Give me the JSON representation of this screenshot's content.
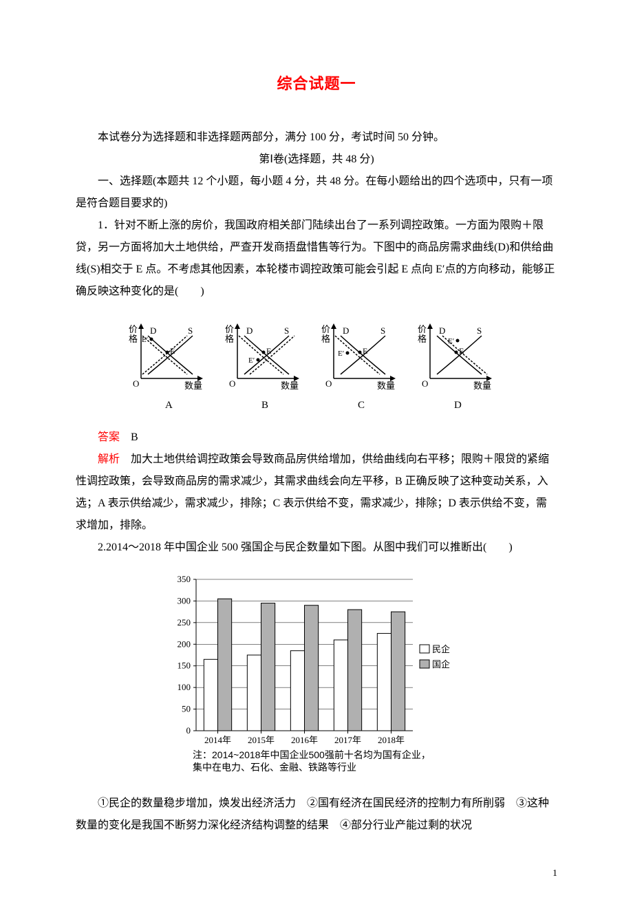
{
  "title": "综合试题一",
  "intro": "本试卷分为选择题和非选择题两部分，满分 100 分，考试时间 50 分钟。",
  "section_header": "第Ⅰ卷(选择题，共 48 分)",
  "instructions": "一、选择题(本题共 12 个小题，每小题 4 分，共 48 分。在每小题给出的四个选项中，只有一项是符合题目要求的)",
  "q1": {
    "text": "1．针对不断上涨的房价，我国政府相关部门陆续出台了一系列调控政策。一方面为限购＋限贷，另一方面将加大土地供给，严查开发商捂盘惜售等行为。下图中的商品房需求曲线(D)和供给曲线(S)相交于 E 点。不考虑其他因素，本轮楼市调控政策可能会引起 E 点向 E′点的方向移动，能够正确反映这种变化的是(　　)",
    "answer_label": "答案",
    "answer": "　B",
    "analysis_label": "解析",
    "analysis": "　加大土地供给调控政策会导致商品房供给增加，供给曲线向右平移；限购＋限贷的紧缩性调控政策，会导致商品房的需求减少，其需求曲线会向左平移，B 正确反映了这种变动关系，入选；A 表示供给减少，需求减少，排除；C 表示供给不变，需求减少，排除；D 表示供给不变，需求增加，排除。"
  },
  "q2": {
    "text": "2.2014～2018 年中国企业 500 强国企与民企数量如下图。从图中我们可以推断出(　　)",
    "options": "①民企的数量稳步增加，焕发出经济活力　②国有经济在国民经济的控制力有所削弱　③这种数量的变化是我国不断努力深化经济结构调整的结果　④部分行业产能过剩的状况"
  },
  "sd_charts": {
    "axis_labels": {
      "y": "价格",
      "x": "数量"
    },
    "curve_labels": {
      "demand": "D",
      "supply": "S"
    },
    "point_labels": {
      "e": "E",
      "eprime": "E′"
    },
    "options": [
      "A",
      "B",
      "C",
      "D"
    ],
    "line_color": "#000000",
    "dashed_color": "#000000",
    "stroke_width": 1.5,
    "variants": [
      {
        "id": "A",
        "d_shift": -8,
        "s_shift": -8,
        "eprime_pos": [
          40,
          38
        ]
      },
      {
        "id": "B",
        "d_shift": -8,
        "s_shift": 8,
        "eprime_pos": [
          55,
          68
        ]
      },
      {
        "id": "C",
        "d_shift": -8,
        "s_shift": 0,
        "eprime_pos": [
          45,
          58
        ]
      },
      {
        "id": "D",
        "d_shift": 8,
        "s_shift": 0,
        "eprime_pos": [
          65,
          40
        ]
      }
    ]
  },
  "bar_chart": {
    "type": "bar",
    "categories": [
      "2014年",
      "2015年",
      "2016年",
      "2017年",
      "2018年"
    ],
    "series": [
      {
        "name": "民企",
        "values": [
          165,
          175,
          185,
          210,
          225
        ],
        "fill": "#ffffff",
        "stroke": "#000000"
      },
      {
        "name": "国企",
        "values": [
          305,
          295,
          290,
          280,
          275
        ],
        "fill": "#b0b0b0",
        "stroke": "#000000"
      }
    ],
    "ylim": [
      0,
      350
    ],
    "ytick_step": 50,
    "yticks": [
      0,
      50,
      100,
      150,
      200,
      250,
      300,
      350
    ],
    "bar_width": 0.32,
    "background_color": "#ffffff",
    "axis_color": "#000000",
    "grid_color": "#000000",
    "tick_fontsize": 13,
    "legend": {
      "position": "right",
      "items": [
        {
          "label": "民企",
          "fill": "#ffffff",
          "stroke": "#000000"
        },
        {
          "label": "国企",
          "fill": "#b0b0b0",
          "stroke": "#000000"
        }
      ]
    },
    "note_line1": "注：2014~2018年中国企业500强前十名均为国有企业，",
    "note_line2": "集中在电力、石化、金融、铁路等行业"
  },
  "page_number": "1"
}
